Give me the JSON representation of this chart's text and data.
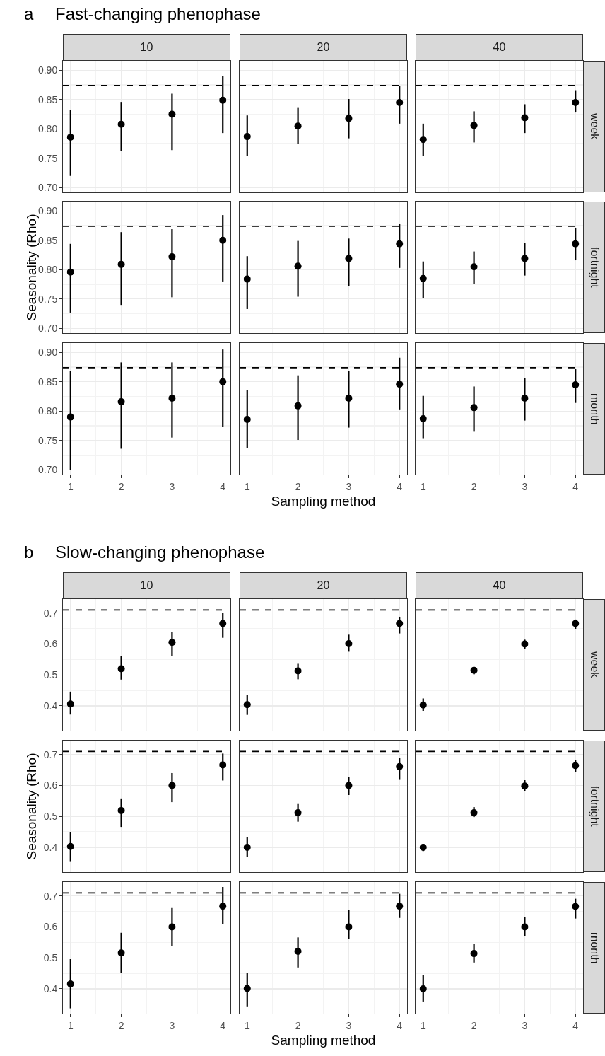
{
  "chart_data": [
    {
      "type": "scatter",
      "annotations": [
        "a",
        "Fast-changing phenophase"
      ],
      "title": "10",
      "tick_labels": "y",
      "x": [
        1,
        2,
        3,
        4
      ],
      "color": "#000000",
      "marker": "circle",
      "grid": true,
      "values": [
        0.786,
        0.808,
        0.825,
        0.849
      ],
      "errors": [
        [
          0.72,
          0.832
        ],
        [
          0.762,
          0.846
        ],
        [
          0.764,
          0.86
        ],
        [
          0.793,
          0.89
        ]
      ],
      "xlim": [
        0.85,
        4.15
      ],
      "xticks": [
        1,
        2,
        3,
        4
      ],
      "ylim": [
        0.692,
        0.916
      ],
      "yticks": [
        {
          "value": 0.7,
          "label": "0.70"
        },
        {
          "value": 0.75,
          "label": "0.75"
        },
        {
          "value": 0.8,
          "label": "0.80"
        },
        {
          "value": 0.85,
          "label": "0.85"
        },
        {
          "value": 0.9,
          "label": "0.90"
        }
      ],
      "ref_lines": [
        {
          "axis": "y",
          "value": 0.874,
          "line_style": "dashed",
          "color": "#000000"
        }
      ]
    },
    {
      "type": "scatter",
      "title": "20",
      "tick_labels": false,
      "x": [
        1,
        2,
        3,
        4
      ],
      "color": "#000000",
      "marker": "circle",
      "grid": true,
      "values": [
        0.787,
        0.805,
        0.818,
        0.845
      ],
      "errors": [
        [
          0.754,
          0.823
        ],
        [
          0.774,
          0.837
        ],
        [
          0.784,
          0.851
        ],
        [
          0.809,
          0.873
        ]
      ],
      "xlim": [
        0.85,
        4.15
      ],
      "xticks": [
        1,
        2,
        3,
        4
      ],
      "ylim": [
        0.692,
        0.916
      ],
      "yticks": [
        0.7,
        0.75,
        0.8,
        0.85,
        0.9
      ],
      "ref_lines": [
        {
          "axis": "y",
          "value": 0.874,
          "line_style": "dashed",
          "color": "#000000"
        }
      ]
    },
    {
      "type": "scatter",
      "title": "40",
      "y2label": "week",
      "tick_labels": false,
      "x": [
        1,
        2,
        3,
        4
      ],
      "color": "#000000",
      "marker": "circle",
      "grid": true,
      "values": [
        0.782,
        0.806,
        0.819,
        0.845
      ],
      "errors": [
        [
          0.754,
          0.809
        ],
        [
          0.777,
          0.83
        ],
        [
          0.793,
          0.842
        ],
        [
          0.828,
          0.866
        ]
      ],
      "xlim": [
        0.85,
        4.15
      ],
      "xticks": [
        1,
        2,
        3,
        4
      ],
      "ylim": [
        0.692,
        0.916
      ],
      "yticks": [
        0.7,
        0.75,
        0.8,
        0.85,
        0.9
      ],
      "ref_lines": [
        {
          "axis": "y",
          "value": 0.874,
          "line_style": "dashed",
          "color": "#000000"
        }
      ]
    },
    {
      "type": "scatter",
      "ylabel": "Seasonality (Rho)",
      "tick_labels": "y",
      "x": [
        1,
        2,
        3,
        4
      ],
      "color": "#000000",
      "marker": "circle",
      "grid": true,
      "values": [
        0.796,
        0.809,
        0.822,
        0.85
      ],
      "errors": [
        [
          0.727,
          0.844
        ],
        [
          0.74,
          0.864
        ],
        [
          0.753,
          0.869
        ],
        [
          0.78,
          0.893
        ]
      ],
      "xlim": [
        0.85,
        4.15
      ],
      "xticks": [
        1,
        2,
        3,
        4
      ],
      "ylim": [
        0.692,
        0.916
      ],
      "yticks": [
        {
          "value": 0.7,
          "label": "0.70"
        },
        {
          "value": 0.75,
          "label": "0.75"
        },
        {
          "value": 0.8,
          "label": "0.80"
        },
        {
          "value": 0.85,
          "label": "0.85"
        },
        {
          "value": 0.9,
          "label": "0.90"
        }
      ],
      "ref_lines": [
        {
          "axis": "y",
          "value": 0.874,
          "line_style": "dashed",
          "color": "#000000"
        }
      ]
    },
    {
      "type": "scatter",
      "tick_labels": false,
      "x": [
        1,
        2,
        3,
        4
      ],
      "color": "#000000",
      "marker": "circle",
      "grid": true,
      "values": [
        0.784,
        0.806,
        0.819,
        0.844
      ],
      "errors": [
        [
          0.733,
          0.823
        ],
        [
          0.754,
          0.849
        ],
        [
          0.772,
          0.853
        ],
        [
          0.803,
          0.878
        ]
      ],
      "xlim": [
        0.85,
        4.15
      ],
      "xticks": [
        1,
        2,
        3,
        4
      ],
      "ylim": [
        0.692,
        0.916
      ],
      "yticks": [
        0.7,
        0.75,
        0.8,
        0.85,
        0.9
      ],
      "ref_lines": [
        {
          "axis": "y",
          "value": 0.874,
          "line_style": "dashed",
          "color": "#000000"
        }
      ]
    },
    {
      "type": "scatter",
      "y2label": "fortnight",
      "tick_labels": false,
      "x": [
        1,
        2,
        3,
        4
      ],
      "color": "#000000",
      "marker": "circle",
      "grid": true,
      "values": [
        0.785,
        0.805,
        0.819,
        0.844
      ],
      "errors": [
        [
          0.751,
          0.814
        ],
        [
          0.776,
          0.831
        ],
        [
          0.79,
          0.846
        ],
        [
          0.816,
          0.871
        ]
      ],
      "xlim": [
        0.85,
        4.15
      ],
      "xticks": [
        1,
        2,
        3,
        4
      ],
      "ylim": [
        0.692,
        0.916
      ],
      "yticks": [
        0.7,
        0.75,
        0.8,
        0.85,
        0.9
      ],
      "ref_lines": [
        {
          "axis": "y",
          "value": 0.874,
          "line_style": "dashed",
          "color": "#000000"
        }
      ]
    },
    {
      "type": "scatter",
      "x": [
        1,
        2,
        3,
        4
      ],
      "color": "#000000",
      "marker": "circle",
      "grid": true,
      "values": [
        0.79,
        0.816,
        0.822,
        0.85
      ],
      "errors": [
        [
          0.7,
          0.868
        ],
        [
          0.736,
          0.883
        ],
        [
          0.755,
          0.883
        ],
        [
          0.773,
          0.905
        ]
      ],
      "xlim": [
        0.85,
        4.15
      ],
      "xticks": [
        1,
        2,
        3,
        4
      ],
      "ylim": [
        0.692,
        0.916
      ],
      "yticks": [
        {
          "value": 0.7,
          "label": "0.70"
        },
        {
          "value": 0.75,
          "label": "0.75"
        },
        {
          "value": 0.8,
          "label": "0.80"
        },
        {
          "value": 0.85,
          "label": "0.85"
        },
        {
          "value": 0.9,
          "label": "0.90"
        }
      ],
      "ref_lines": [
        {
          "axis": "y",
          "value": 0.874,
          "line_style": "dashed",
          "color": "#000000"
        }
      ]
    },
    {
      "type": "scatter",
      "xlabel": "Sampling method",
      "tick_labels": "x",
      "x": [
        1,
        2,
        3,
        4
      ],
      "color": "#000000",
      "marker": "circle",
      "grid": true,
      "values": [
        0.786,
        0.809,
        0.822,
        0.846
      ],
      "errors": [
        [
          0.737,
          0.836
        ],
        [
          0.751,
          0.861
        ],
        [
          0.772,
          0.868
        ],
        [
          0.803,
          0.891
        ]
      ],
      "xlim": [
        0.85,
        4.15
      ],
      "xticks": [
        1,
        2,
        3,
        4
      ],
      "ylim": [
        0.692,
        0.916
      ],
      "yticks": [
        0.7,
        0.75,
        0.8,
        0.85,
        0.9
      ],
      "ref_lines": [
        {
          "axis": "y",
          "value": 0.874,
          "line_style": "dashed",
          "color": "#000000"
        }
      ]
    },
    {
      "type": "scatter",
      "y2label": "month",
      "tick_labels": "x",
      "x": [
        1,
        2,
        3,
        4
      ],
      "color": "#000000",
      "marker": "circle",
      "grid": true,
      "values": [
        0.787,
        0.806,
        0.822,
        0.845
      ],
      "errors": [
        [
          0.754,
          0.826
        ],
        [
          0.765,
          0.842
        ],
        [
          0.784,
          0.857
        ],
        [
          0.814,
          0.872
        ]
      ],
      "xlim": [
        0.85,
        4.15
      ],
      "xticks": [
        1,
        2,
        3,
        4
      ],
      "ylim": [
        0.692,
        0.916
      ],
      "yticks": [
        0.7,
        0.75,
        0.8,
        0.85,
        0.9
      ],
      "ref_lines": [
        {
          "axis": "y",
          "value": 0.874,
          "line_style": "dashed",
          "color": "#000000"
        }
      ]
    },
    {
      "type": "scatter",
      "annotations": [
        "b",
        "Slow-changing phenophase"
      ],
      "title": "10",
      "tick_labels": "y",
      "x": [
        1,
        2,
        3,
        4
      ],
      "color": "#000000",
      "marker": "circle",
      "grid": true,
      "values": [
        0.406,
        0.52,
        0.605,
        0.666
      ],
      "errors": [
        [
          0.372,
          0.446
        ],
        [
          0.485,
          0.562
        ],
        [
          0.561,
          0.639
        ],
        [
          0.62,
          0.7
        ]
      ],
      "xlim": [
        0.85,
        4.15
      ],
      "xticks": [
        1,
        2,
        3,
        4
      ],
      "ylim": [
        0.32,
        0.745
      ],
      "yticks": [
        0.4,
        0.5,
        0.6,
        0.7
      ],
      "ref_lines": [
        {
          "axis": "y",
          "value": 0.71,
          "line_style": "dashed",
          "color": "#000000"
        }
      ]
    },
    {
      "type": "scatter",
      "title": "20",
      "tick_labels": false,
      "x": [
        1,
        2,
        3,
        4
      ],
      "color": "#000000",
      "marker": "circle",
      "grid": true,
      "values": [
        0.404,
        0.513,
        0.601,
        0.666
      ],
      "errors": [
        [
          0.371,
          0.435
        ],
        [
          0.486,
          0.536
        ],
        [
          0.575,
          0.63
        ],
        [
          0.634,
          0.688
        ]
      ],
      "xlim": [
        0.85,
        4.15
      ],
      "xticks": [
        1,
        2,
        3,
        4
      ],
      "ylim": [
        0.32,
        0.745
      ],
      "yticks": [
        0.4,
        0.5,
        0.6,
        0.7
      ],
      "ref_lines": [
        {
          "axis": "y",
          "value": 0.71,
          "line_style": "dashed",
          "color": "#000000"
        }
      ]
    },
    {
      "type": "scatter",
      "title": "40",
      "y2label": "week",
      "tick_labels": false,
      "x": [
        1,
        2,
        3,
        4
      ],
      "color": "#000000",
      "marker": "circle",
      "grid": true,
      "values": [
        0.403,
        0.515,
        0.6,
        0.666
      ],
      "errors": [
        [
          0.384,
          0.424
        ],
        [
          0.502,
          0.526
        ],
        [
          0.585,
          0.614
        ],
        [
          0.649,
          0.679
        ]
      ],
      "xlim": [
        0.85,
        4.15
      ],
      "xticks": [
        1,
        2,
        3,
        4
      ],
      "ylim": [
        0.32,
        0.745
      ],
      "yticks": [
        0.4,
        0.5,
        0.6,
        0.7
      ],
      "ref_lines": [
        {
          "axis": "y",
          "value": 0.71,
          "line_style": "dashed",
          "color": "#000000"
        }
      ]
    },
    {
      "type": "scatter",
      "ylabel": "Seasonality (Rho)",
      "tick_labels": "y",
      "x": [
        1,
        2,
        3,
        4
      ],
      "color": "#000000",
      "marker": "circle",
      "grid": true,
      "values": [
        0.403,
        0.519,
        0.6,
        0.666
      ],
      "errors": [
        [
          0.353,
          0.449
        ],
        [
          0.466,
          0.558
        ],
        [
          0.546,
          0.64
        ],
        [
          0.616,
          0.703
        ]
      ],
      "xlim": [
        0.85,
        4.15
      ],
      "xticks": [
        1,
        2,
        3,
        4
      ],
      "ylim": [
        0.32,
        0.745
      ],
      "yticks": [
        0.4,
        0.5,
        0.6,
        0.7
      ],
      "ref_lines": [
        {
          "axis": "y",
          "value": 0.71,
          "line_style": "dashed",
          "color": "#000000"
        }
      ]
    },
    {
      "type": "scatter",
      "tick_labels": false,
      "x": [
        1,
        2,
        3,
        4
      ],
      "color": "#000000",
      "marker": "circle",
      "grid": true,
      "values": [
        0.4,
        0.512,
        0.6,
        0.661
      ],
      "errors": [
        [
          0.369,
          0.432
        ],
        [
          0.483,
          0.54
        ],
        [
          0.569,
          0.628
        ],
        [
          0.618,
          0.688
        ]
      ],
      "xlim": [
        0.85,
        4.15
      ],
      "xticks": [
        1,
        2,
        3,
        4
      ],
      "ylim": [
        0.32,
        0.745
      ],
      "yticks": [
        0.4,
        0.5,
        0.6,
        0.7
      ],
      "ref_lines": [
        {
          "axis": "y",
          "value": 0.71,
          "line_style": "dashed",
          "color": "#000000"
        }
      ]
    },
    {
      "type": "scatter",
      "y2label": "fortnight",
      "tick_labels": false,
      "x": [
        1,
        2,
        3,
        4
      ],
      "color": "#000000",
      "marker": "circle",
      "grid": true,
      "values": [
        0.4,
        0.512,
        0.598,
        0.664
      ],
      "errors": [
        [
          0.388,
          0.411
        ],
        [
          0.498,
          0.53
        ],
        [
          0.581,
          0.617
        ],
        [
          0.643,
          0.683
        ]
      ],
      "xlim": [
        0.85,
        4.15
      ],
      "xticks": [
        1,
        2,
        3,
        4
      ],
      "ylim": [
        0.32,
        0.745
      ],
      "yticks": [
        0.4,
        0.5,
        0.6,
        0.7
      ],
      "ref_lines": [
        {
          "axis": "y",
          "value": 0.71,
          "line_style": "dashed",
          "color": "#000000"
        }
      ]
    },
    {
      "type": "scatter",
      "x": [
        1,
        2,
        3,
        4
      ],
      "color": "#000000",
      "marker": "circle",
      "grid": true,
      "values": [
        0.416,
        0.516,
        0.6,
        0.667
      ],
      "errors": [
        [
          0.337,
          0.496
        ],
        [
          0.452,
          0.581
        ],
        [
          0.537,
          0.661
        ],
        [
          0.609,
          0.729
        ]
      ],
      "xlim": [
        0.85,
        4.15
      ],
      "xticks": [
        1,
        2,
        3,
        4
      ],
      "ylim": [
        0.32,
        0.745
      ],
      "yticks": [
        0.4,
        0.5,
        0.6,
        0.7
      ],
      "ref_lines": [
        {
          "axis": "y",
          "value": 0.71,
          "line_style": "dashed",
          "color": "#000000"
        }
      ]
    },
    {
      "type": "scatter",
      "xlabel": "Sampling method",
      "tick_labels": "x",
      "x": [
        1,
        2,
        3,
        4
      ],
      "color": "#000000",
      "marker": "circle",
      "grid": true,
      "values": [
        0.401,
        0.521,
        0.6,
        0.667
      ],
      "errors": [
        [
          0.341,
          0.452
        ],
        [
          0.469,
          0.566
        ],
        [
          0.562,
          0.655
        ],
        [
          0.629,
          0.707
        ]
      ],
      "xlim": [
        0.85,
        4.15
      ],
      "xticks": [
        1,
        2,
        3,
        4
      ],
      "ylim": [
        0.32,
        0.745
      ],
      "yticks": [
        0.4,
        0.5,
        0.6,
        0.7
      ],
      "ref_lines": [
        {
          "axis": "y",
          "value": 0.71,
          "line_style": "dashed",
          "color": "#000000"
        }
      ]
    },
    {
      "type": "scatter",
      "y2label": "month",
      "tick_labels": "x",
      "x": [
        1,
        2,
        3,
        4
      ],
      "color": "#000000",
      "marker": "circle",
      "grid": true,
      "values": [
        0.4,
        0.514,
        0.6,
        0.666
      ],
      "errors": [
        [
          0.359,
          0.445
        ],
        [
          0.485,
          0.544
        ],
        [
          0.571,
          0.633
        ],
        [
          0.627,
          0.691
        ]
      ],
      "xlim": [
        0.85,
        4.15
      ],
      "xticks": [
        1,
        2,
        3,
        4
      ],
      "ylim": [
        0.32,
        0.745
      ],
      "yticks": [
        0.4,
        0.5,
        0.6,
        0.7
      ],
      "ref_lines": [
        {
          "axis": "y",
          "value": 0.71,
          "line_style": "dashed",
          "color": "#000000"
        }
      ]
    }
  ]
}
